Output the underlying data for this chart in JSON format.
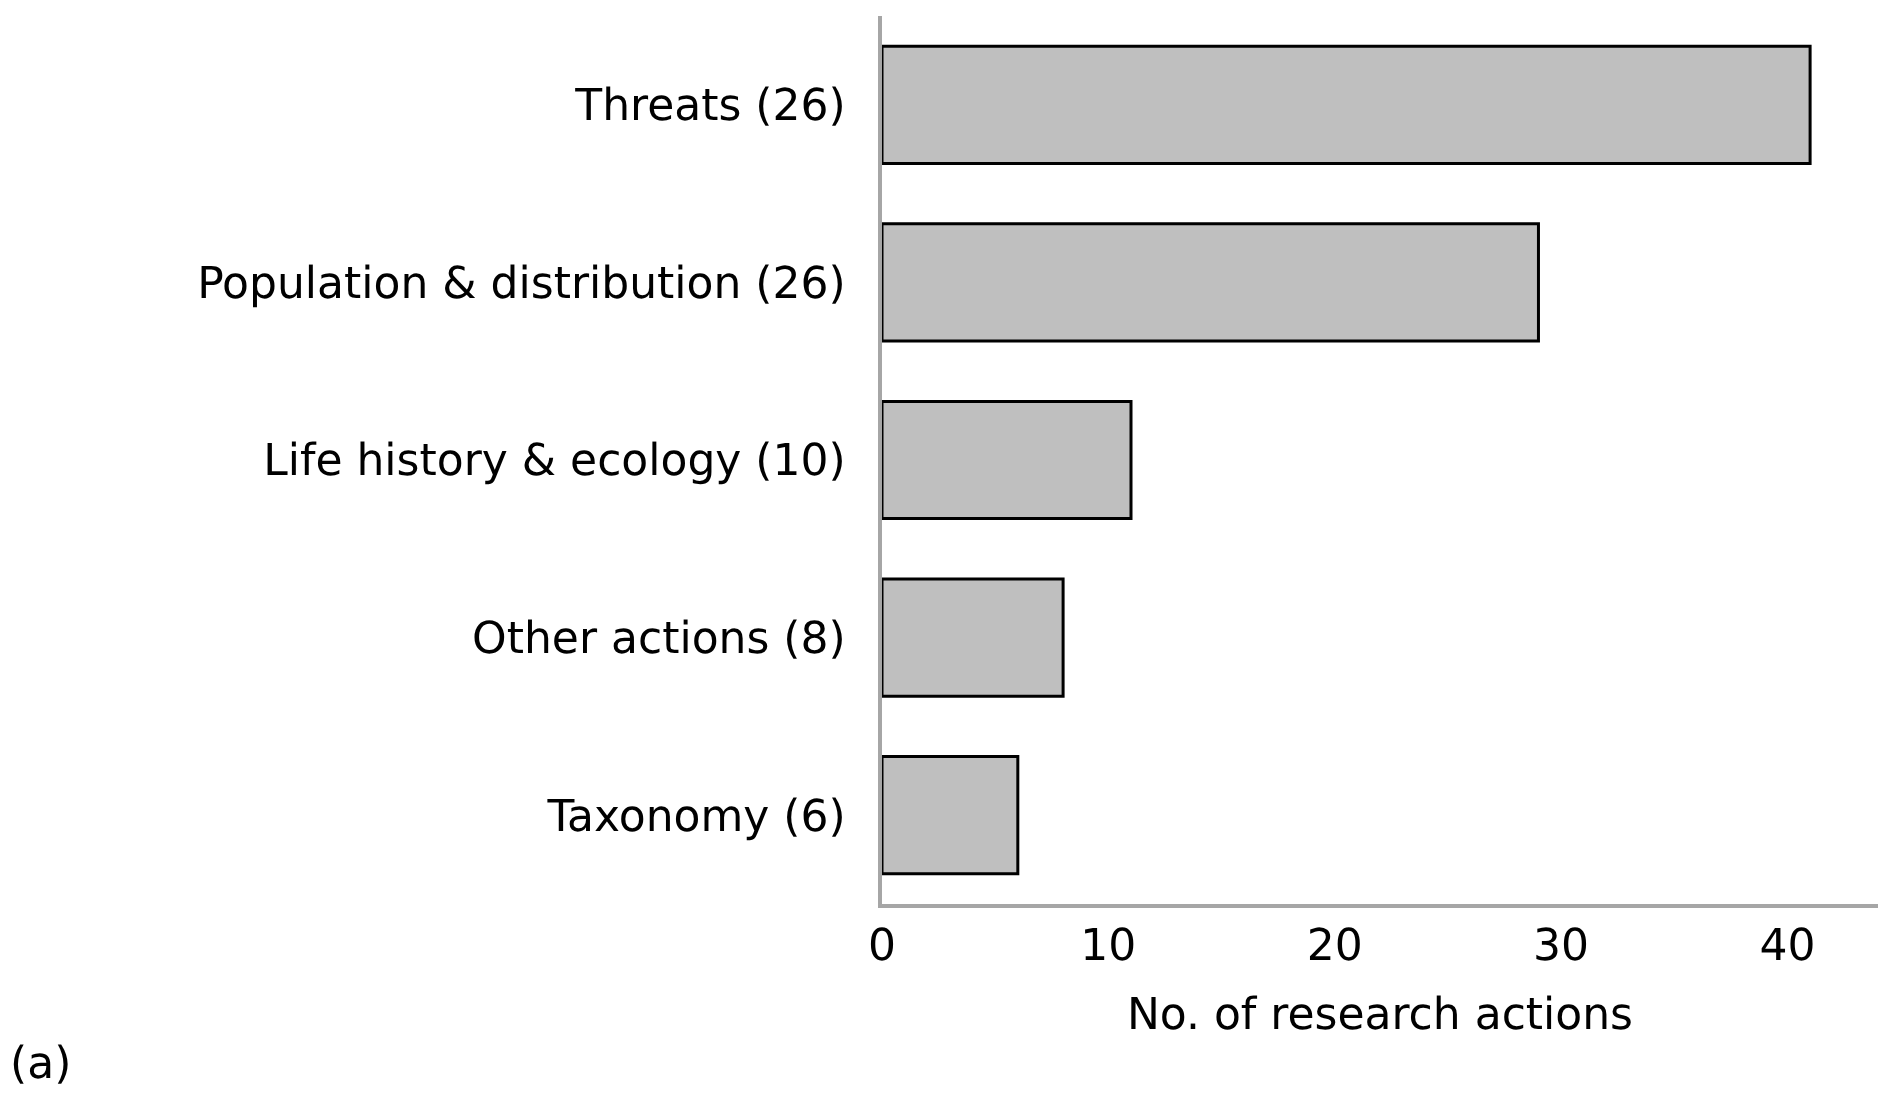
{
  "chart_data": {
    "type": "bar",
    "orientation": "horizontal",
    "xlabel": "No. of research actions",
    "categories": [
      "Threats (26)",
      "Population & distribution (26)",
      "Life history & ecology (10)",
      "Other actions (8)",
      "Taxonomy (6)"
    ],
    "values": [
      41,
      29,
      11,
      8,
      6
    ],
    "color": "#bfbfbf",
    "xlim": [
      0,
      44
    ],
    "xticks": [
      0,
      10,
      20,
      30,
      40
    ],
    "grid": false,
    "annotations": [
      "(a)"
    ]
  }
}
